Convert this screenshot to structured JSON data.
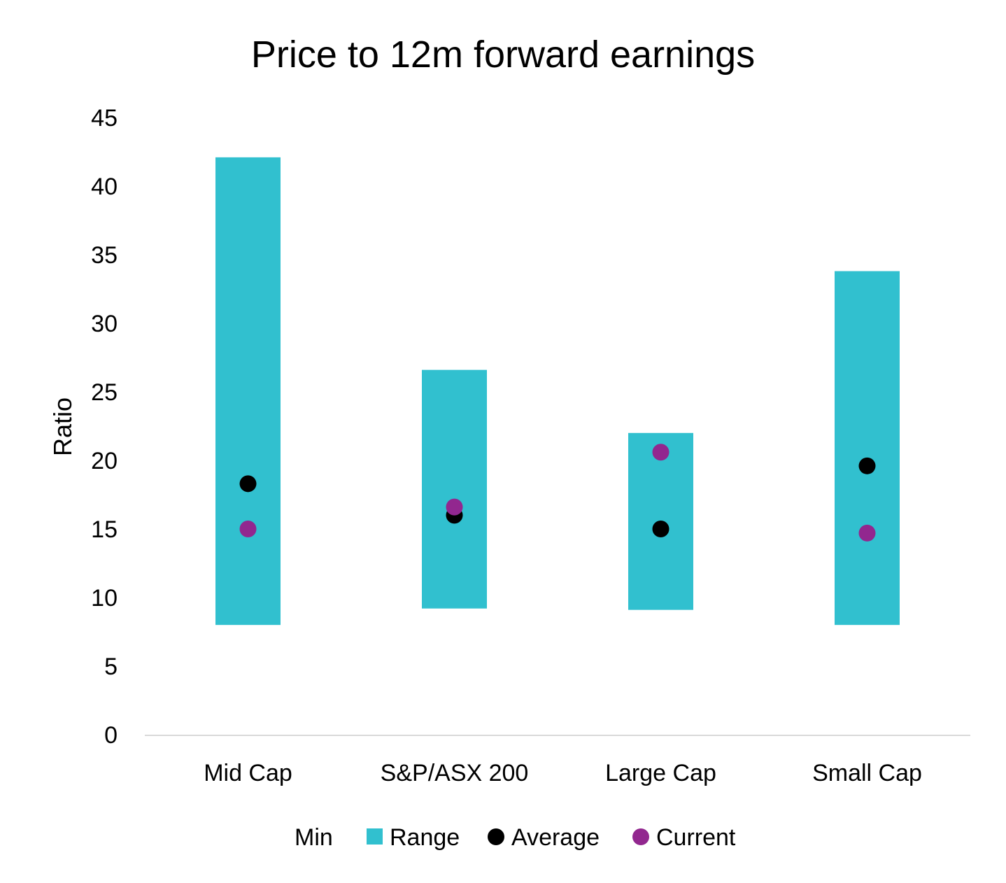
{
  "chart_data": {
    "type": "bar",
    "title": "Price to 12m forward earnings",
    "xlabel": "",
    "ylabel": "Ratio",
    "ylim": [
      0,
      45
    ],
    "yticks": [
      0,
      5,
      10,
      15,
      20,
      25,
      30,
      35,
      40,
      45
    ],
    "grid": false,
    "legend_position": "bottom",
    "categories": [
      "Mid Cap",
      "S&P/ASX 200",
      "Large Cap",
      "Small Cap"
    ],
    "series": [
      {
        "name": "Min",
        "kind": "stacked-bar-invisible",
        "values": [
          8.0,
          9.2,
          9.1,
          8.0
        ]
      },
      {
        "name": "Range",
        "kind": "stacked-bar",
        "color": "#31C0CF",
        "values": [
          34.1,
          17.4,
          12.9,
          25.8
        ]
      },
      {
        "name": "Average",
        "kind": "marker",
        "color": "#000000",
        "values": [
          18.3,
          16.0,
          15.0,
          19.6
        ]
      },
      {
        "name": "Current",
        "kind": "marker",
        "color": "#92278F",
        "values": [
          15.0,
          16.6,
          20.6,
          14.7
        ]
      }
    ]
  }
}
